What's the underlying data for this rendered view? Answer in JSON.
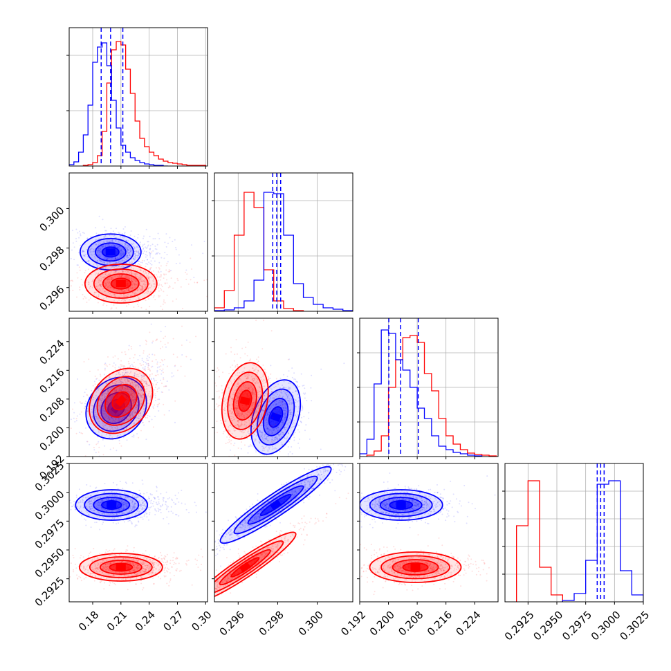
{
  "chart_data": {
    "type": "corner",
    "grid": true,
    "parameters": 4,
    "series": [
      {
        "name": "",
        "color": "#0000ff"
      },
      {
        "name": "",
        "color": "#ff0000"
      }
    ],
    "axes": [
      {
        "range": [
          0.155,
          0.302
        ],
        "ticks": [
          0.18,
          0.21,
          0.24,
          0.27,
          0.3
        ],
        "tick_labels": [
          "0.18",
          "0.21",
          "0.24",
          "0.27",
          "0.30"
        ]
      },
      {
        "range": [
          0.2948,
          0.3018
        ],
        "ticks": [
          0.296,
          0.298,
          0.3
        ],
        "tick_labels": [
          "0.296",
          "0.298",
          "0.300"
        ]
      },
      {
        "range": [
          0.192,
          0.2305
        ],
        "ticks": [
          0.192,
          0.2,
          0.208,
          0.216,
          0.224
        ],
        "tick_labels": [
          "0.192",
          "0.200",
          "0.208",
          "0.216",
          "0.224"
        ]
      },
      {
        "range": [
          0.2905,
          0.3025
        ],
        "ticks": [
          0.2925,
          0.295,
          0.2975,
          0.3,
          0.3025
        ],
        "tick_labels": [
          "0.2925",
          "0.2950",
          "0.2975",
          "0.3000",
          "0.3025"
        ]
      }
    ],
    "blue": {
      "histograms": [
        {
          "bins": [
            0.155,
            0.16,
            0.165,
            0.17,
            0.175,
            0.18,
            0.185,
            0.19,
            0.195,
            0.2,
            0.205,
            0.21,
            0.215,
            0.22,
            0.225,
            0.23,
            0.235,
            0.24,
            0.245,
            0.25,
            0.255,
            0.26
          ],
          "counts": [
            2,
            6,
            20,
            45,
            88,
            150,
            172,
            178,
            145,
            95,
            55,
            30,
            20,
            12,
            8,
            5,
            3,
            2,
            1,
            1,
            0
          ]
        },
        {
          "bins": [
            0.2948,
            0.2953,
            0.2958,
            0.2963,
            0.2968,
            0.2973,
            0.2978,
            0.2983,
            0.2988,
            0.2993,
            0.2998,
            0.3003,
            0.3008,
            0.3013,
            0.3018
          ],
          "counts": [
            1,
            2,
            5,
            15,
            45,
            172,
            170,
            110,
            40,
            20,
            10,
            5,
            3,
            1
          ]
        },
        {
          "bins": [
            0.192,
            0.194,
            0.196,
            0.198,
            0.2,
            0.202,
            0.204,
            0.206,
            0.208,
            0.21,
            0.212,
            0.214,
            0.216,
            0.218,
            0.22,
            0.222,
            0.224,
            0.226
          ],
          "counts": [
            4,
            25,
            105,
            183,
            178,
            140,
            125,
            100,
            70,
            55,
            30,
            15,
            10,
            6,
            4,
            2,
            1
          ]
        },
        {
          "bins": [
            0.2955,
            0.2965,
            0.2975,
            0.2985,
            0.2995,
            0.3005,
            0.3015,
            0.3025
          ],
          "counts": [
            2,
            12,
            60,
            170,
            175,
            45,
            10
          ]
        }
      ],
      "quantile_lines": [
        [
          0.189,
          0.199,
          0.212
        ],
        [
          0.29775,
          0.29795,
          0.29815
        ],
        [
          0.2001,
          0.2034,
          0.2083
        ],
        [
          0.2985,
          0.2988,
          0.2991
        ]
      ],
      "centers": {
        "0-1": [
          0.199,
          0.2978
        ],
        "0-2": [
          0.205,
          0.2055
        ],
        "1-2": [
          0.2979,
          0.203
        ],
        "0-3": [
          0.2,
          0.2989
        ],
        "1-3": [
          0.2979,
          0.2989
        ],
        "2-3": [
          0.2035,
          0.2989
        ]
      }
    },
    "red": {
      "histograms": [
        {
          "bins": [
            0.17,
            0.175,
            0.18,
            0.185,
            0.19,
            0.195,
            0.2,
            0.205,
            0.21,
            0.215,
            0.22,
            0.225,
            0.23,
            0.235,
            0.24,
            0.245,
            0.25,
            0.255,
            0.26,
            0.265,
            0.27,
            0.275,
            0.28,
            0.285,
            0.29,
            0.295,
            0.3
          ],
          "counts": [
            1,
            2,
            5,
            15,
            50,
            120,
            168,
            180,
            175,
            140,
            105,
            65,
            40,
            28,
            20,
            15,
            10,
            7,
            5,
            4,
            3,
            2,
            1,
            1,
            1,
            1
          ]
        },
        {
          "bins": [
            0.2948,
            0.2953,
            0.2958,
            0.2963,
            0.2968,
            0.2973,
            0.2978,
            0.2983,
            0.2988,
            0.2993
          ],
          "counts": [
            5,
            30,
            110,
            172,
            150,
            60,
            15,
            4,
            1
          ]
        },
        {
          "bins": [
            0.194,
            0.196,
            0.198,
            0.2,
            0.202,
            0.204,
            0.206,
            0.208,
            0.21,
            0.212,
            0.214,
            0.216,
            0.218,
            0.22,
            0.222,
            0.224,
            0.226,
            0.228,
            0.23
          ],
          "counts": [
            2,
            8,
            30,
            100,
            140,
            172,
            175,
            165,
            120,
            95,
            55,
            30,
            18,
            10,
            5,
            3,
            2,
            1
          ]
        },
        {
          "bins": [
            0.2915,
            0.2925,
            0.2935,
            0.2945,
            0.2955
          ],
          "counts": [
            110,
            175,
            50,
            10
          ]
        }
      ],
      "quantile_lines": [],
      "centers": {
        "0-1": [
          0.21,
          0.2962
        ],
        "0-2": [
          0.21,
          0.2075
        ],
        "1-2": [
          0.29635,
          0.2075
        ],
        "0-3": [
          0.21,
          0.2935
        ],
        "1-3": [
          0.29635,
          0.2935
        ],
        "2-3": [
          0.2075,
          0.2935
        ]
      }
    }
  }
}
